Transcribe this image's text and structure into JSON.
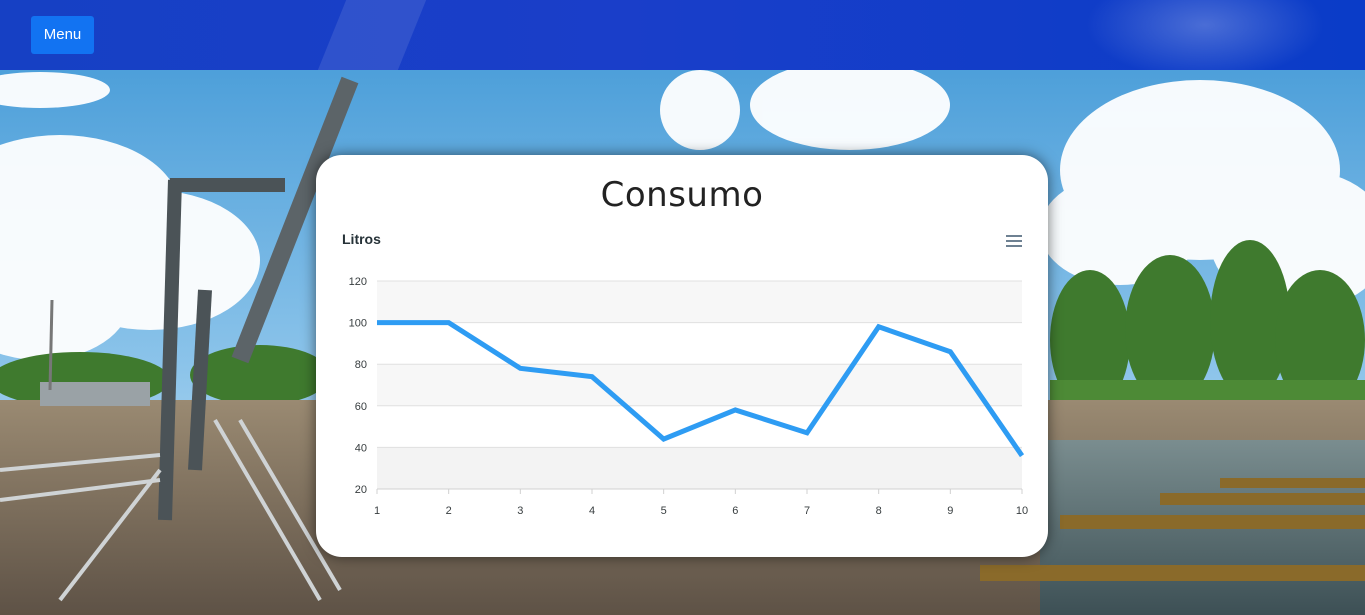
{
  "header": {
    "menu_label": "Menu"
  },
  "card": {
    "title": "Consumo"
  },
  "chart_data": {
    "type": "line",
    "title": "Litros",
    "xlabel": "",
    "ylabel": "",
    "x": [
      1,
      2,
      3,
      4,
      5,
      6,
      7,
      8,
      9,
      10
    ],
    "series": [
      {
        "values": [
          100,
          100,
          78,
          74,
          44,
          58,
          47,
          98,
          86,
          36
        ]
      }
    ],
    "ylim": [
      20,
      120
    ],
    "yticks": [
      20,
      40,
      60,
      80,
      100,
      120
    ],
    "grid": true,
    "line_color": "#2e9cf3",
    "band_color": "#f3f3f3"
  },
  "colors": {
    "topbar": "#1640c4",
    "menu_button": "#1273f2"
  },
  "icons": {
    "chart_menu": "hamburger-icon"
  }
}
